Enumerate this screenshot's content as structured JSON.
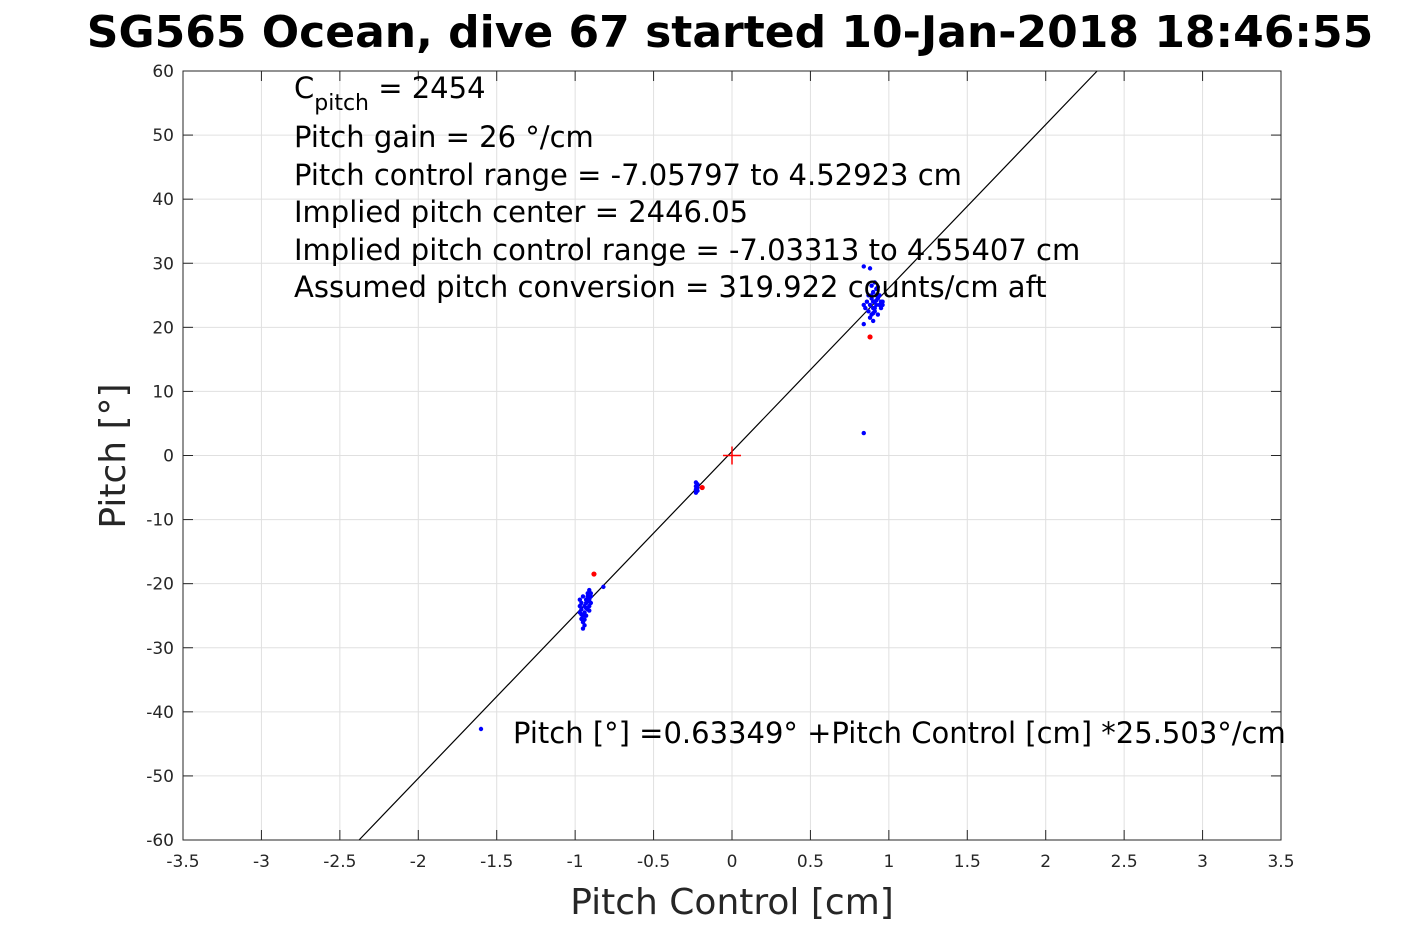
{
  "chart_data": {
    "type": "scatter",
    "title": "SG565 Ocean, dive 67 started 10-Jan-2018 18:46:55",
    "xlabel": "Pitch Control [cm]",
    "ylabel": "Pitch [°]",
    "xlim": [
      -3.5,
      3.5
    ],
    "ylim": [
      -60,
      60
    ],
    "xticks": [
      -3.5,
      -3,
      -2.5,
      -2,
      -1.5,
      -1,
      -0.5,
      0,
      0.5,
      1,
      1.5,
      2,
      2.5,
      3,
      3.5
    ],
    "yticks": [
      -60,
      -50,
      -40,
      -30,
      -20,
      -10,
      0,
      10,
      20,
      30,
      40,
      50,
      60
    ],
    "xtick_labels": [
      "-3.5",
      "-3",
      "-2.5",
      "-2",
      "-1.5",
      "-1",
      "-0.5",
      "0",
      "0.5",
      "1",
      "1.5",
      "2",
      "2.5",
      "3",
      "3.5"
    ],
    "ytick_labels": [
      "-60",
      "-50",
      "-40",
      "-30",
      "-20",
      "-10",
      "0",
      "10",
      "20",
      "30",
      "40",
      "50",
      "60"
    ],
    "grid": true,
    "annotations": {
      "cpitch_base": "C",
      "cpitch_sub": "pitch",
      "cpitch_value": " = 2454",
      "lines": [
        "Pitch gain = 26 °/cm",
        "Pitch control range = -7.05797 to 4.52923 cm",
        "Implied pitch center = 2446.05",
        "Implied pitch control range = -7.03313 to 4.55407 cm",
        "Assumed pitch conversion = 319.922 counts/cm aft"
      ]
    },
    "legend": {
      "label": "Pitch [°] =0.63349° +Pitch Control [cm] *25.503°/cm",
      "location": "bottom-right"
    },
    "fit_line": {
      "intercept": 0.63349,
      "slope": 25.503,
      "color": "#000000"
    },
    "center_marker": {
      "x": 0,
      "y": 0,
      "color": "#ff0000"
    },
    "series": [
      {
        "name": "Pitch [°] =0.63349° +Pitch Control [cm] *25.503°/cm",
        "color": "#0000ff",
        "points": [
          [
            -0.97,
            -22.5
          ],
          [
            -0.97,
            -23.5
          ],
          [
            -0.97,
            -24.5
          ],
          [
            -0.96,
            -25.5
          ],
          [
            -0.96,
            -23.0
          ],
          [
            -0.96,
            -24.0
          ],
          [
            -0.95,
            -26.0
          ],
          [
            -0.95,
            -22.0
          ],
          [
            -0.95,
            -27.0
          ],
          [
            -0.95,
            -25.0
          ],
          [
            -0.94,
            -23.5
          ],
          [
            -0.94,
            -24.5
          ],
          [
            -0.94,
            -26.5
          ],
          [
            -0.93,
            -22.5
          ],
          [
            -0.93,
            -25.0
          ],
          [
            -0.93,
            -23.0
          ],
          [
            -0.92,
            -21.5
          ],
          [
            -0.92,
            -24.0
          ],
          [
            -0.92,
            -22.0
          ],
          [
            -0.91,
            -23.5
          ],
          [
            -0.91,
            -21.0
          ],
          [
            -0.91,
            -22.5
          ],
          [
            -0.9,
            -21.5
          ],
          [
            -0.9,
            -23.0
          ],
          [
            -0.9,
            -22.0
          ],
          [
            -0.96,
            -24.8
          ],
          [
            -0.94,
            -25.6
          ],
          [
            -0.93,
            -23.8
          ],
          [
            -0.92,
            -22.8
          ],
          [
            -0.91,
            -24.2
          ],
          [
            -0.82,
            -20.5
          ],
          [
            -0.23,
            -4.2
          ],
          [
            -0.23,
            -4.8
          ],
          [
            -0.23,
            -5.3
          ],
          [
            -0.23,
            -5.8
          ],
          [
            -0.22,
            -4.5
          ],
          [
            -0.22,
            -5.0
          ],
          [
            -0.22,
            -5.5
          ],
          [
            0.84,
            29.5
          ],
          [
            0.84,
            23.5
          ],
          [
            0.84,
            20.5
          ],
          [
            0.84,
            3.5
          ],
          [
            0.85,
            23.0
          ],
          [
            0.86,
            24.0
          ],
          [
            0.87,
            22.5
          ],
          [
            0.87,
            25.0
          ],
          [
            0.88,
            23.5
          ],
          [
            0.88,
            21.5
          ],
          [
            0.88,
            29.2
          ],
          [
            0.89,
            24.5
          ],
          [
            0.89,
            22.0
          ],
          [
            0.89,
            26.5
          ],
          [
            0.9,
            23.0
          ],
          [
            0.9,
            25.5
          ],
          [
            0.9,
            21.0
          ],
          [
            0.91,
            24.0
          ],
          [
            0.91,
            22.5
          ],
          [
            0.91,
            27.0
          ],
          [
            0.92,
            23.5
          ],
          [
            0.92,
            25.0
          ],
          [
            0.92,
            26.0
          ],
          [
            0.93,
            24.5
          ],
          [
            0.93,
            22.0
          ],
          [
            0.94,
            23.5
          ],
          [
            0.94,
            25.0
          ],
          [
            0.95,
            24.0
          ],
          [
            0.95,
            23.0
          ],
          [
            0.96,
            24.0
          ],
          [
            0.96,
            23.5
          ],
          [
            0.9,
            24.0
          ],
          [
            0.91,
            23.0
          ],
          [
            0.89,
            25.0
          ],
          [
            0.92,
            24.2
          ],
          [
            0.9,
            22.2
          ],
          [
            0.93,
            26.3
          ]
        ]
      },
      {
        "name": "",
        "color": "#ff0000",
        "points": [
          [
            -0.88,
            -18.5
          ],
          [
            -0.19,
            -5.0
          ],
          [
            0.88,
            18.5
          ]
        ]
      }
    ]
  }
}
